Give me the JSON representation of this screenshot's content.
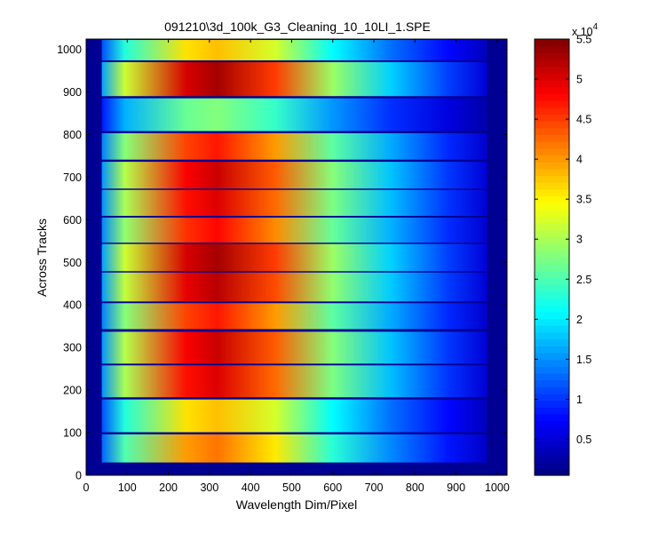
{
  "chart_data": {
    "type": "heatmap",
    "title": "091210\\3d_100k_G3_Cleaning_10_10LI_1.SPE",
    "xlabel": "Wavelength Dim/Pixel",
    "ylabel": "Across Tracks",
    "xlim": [
      0,
      1024
    ],
    "ylim": [
      0,
      1024
    ],
    "x_ticks": [
      0,
      100,
      200,
      300,
      400,
      500,
      600,
      700,
      800,
      900,
      1000
    ],
    "y_ticks": [
      0,
      100,
      200,
      300,
      400,
      500,
      600,
      700,
      800,
      900,
      1000
    ],
    "colormap": "jet",
    "colorbar": {
      "min": 500,
      "max": 55000,
      "tick_values": [
        5000,
        10000,
        15000,
        20000,
        25000,
        30000,
        35000,
        40000,
        45000,
        50000,
        55000
      ],
      "tick_labels": [
        "0.5",
        "1",
        "1.5",
        "2",
        "2.5",
        "3",
        "3.5",
        "4",
        "4.5",
        "5",
        "5.5"
      ],
      "multiplier_label": "x 10",
      "exponent": "4"
    },
    "signal_region_x": [
      38,
      975
    ],
    "tracks": [
      {
        "y_start": 30,
        "y_end": 96,
        "peak": 42000
      },
      {
        "y_start": 101,
        "y_end": 178,
        "peak": 38000
      },
      {
        "y_start": 183,
        "y_end": 258,
        "peak": 50000
      },
      {
        "y_start": 262,
        "y_end": 337,
        "peak": 51000
      },
      {
        "y_start": 343,
        "y_end": 404,
        "peak": 47000
      },
      {
        "y_start": 408,
        "y_end": 476,
        "peak": 52000
      },
      {
        "y_start": 479,
        "y_end": 543,
        "peak": 53000
      },
      {
        "y_start": 546,
        "y_end": 605,
        "peak": 48000
      },
      {
        "y_start": 609,
        "y_end": 670,
        "peak": 50000
      },
      {
        "y_start": 673,
        "y_end": 736,
        "peak": 51000
      },
      {
        "y_start": 741,
        "y_end": 803,
        "peak": 47000
      },
      {
        "y_start": 808,
        "y_end": 885,
        "peak": 28000
      },
      {
        "y_start": 890,
        "y_end": 970,
        "peak": 53000
      },
      {
        "y_start": 974,
        "y_end": 1022,
        "peak": 38000
      }
    ]
  }
}
